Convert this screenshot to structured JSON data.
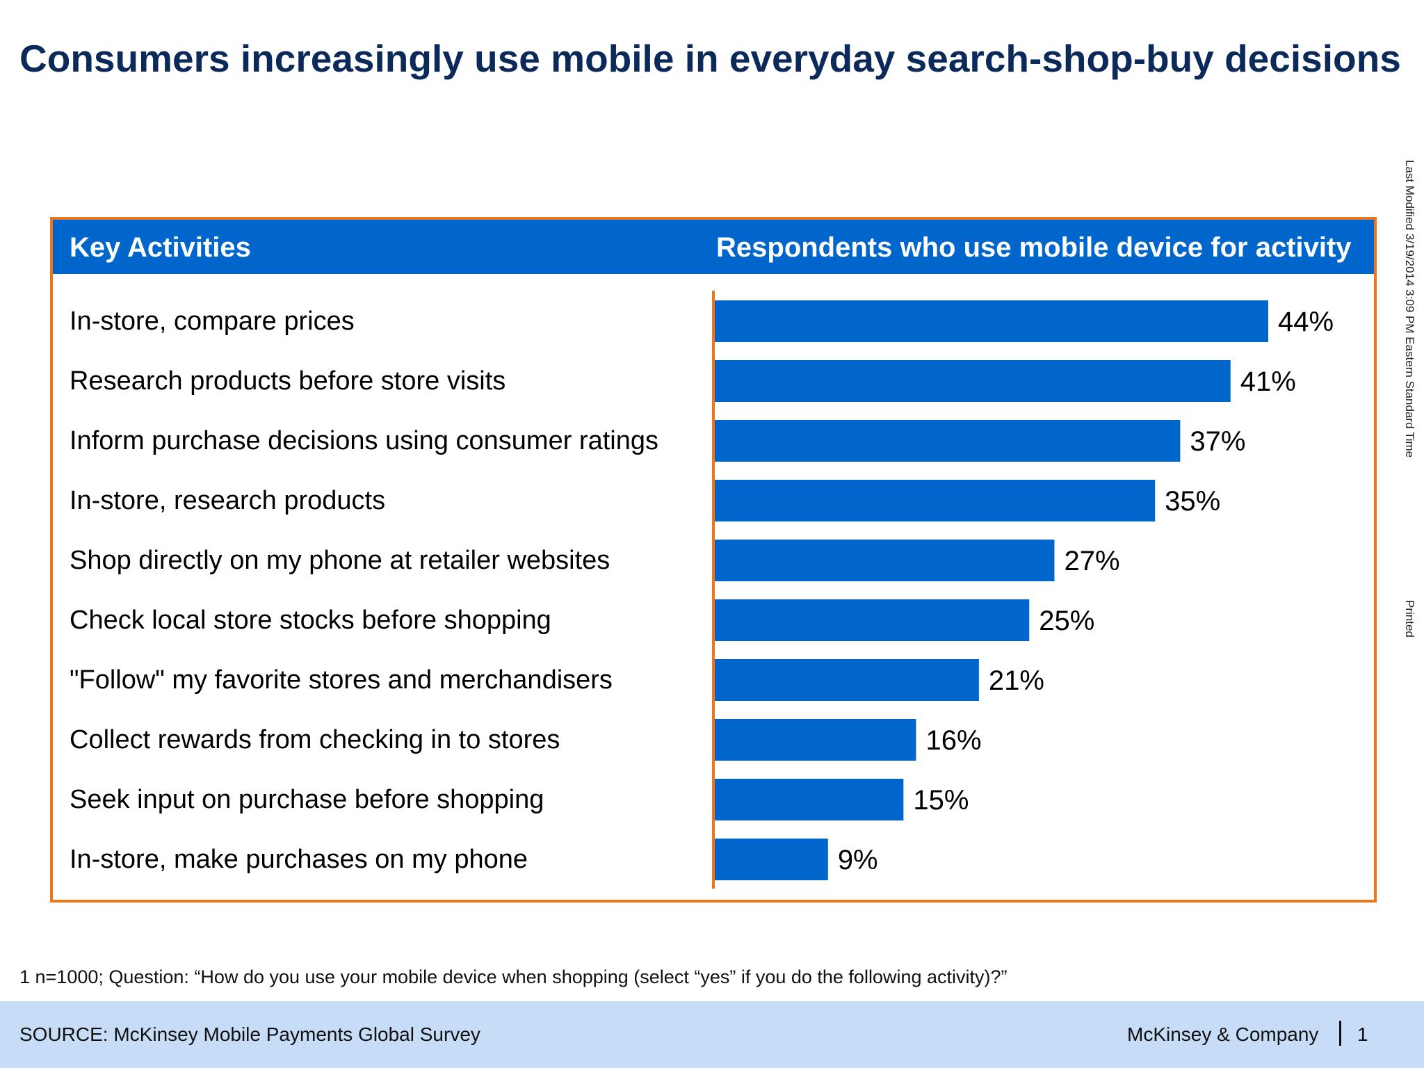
{
  "title": "Consumers increasingly use mobile in everyday search-shop-buy decisions",
  "side_notes": {
    "modified": "Last Modified 3/19/2014 3:09 PM Eastern Standard Time",
    "printed": "Printed"
  },
  "footnote": "1 n=1000; Question: “How do you use your mobile device when shopping (select “yes” if you do the following activity)?”",
  "footer": {
    "source": "SOURCE: McKinsey Mobile Payments Global Survey",
    "brand": "McKinsey & Company",
    "page": "1"
  },
  "colors": {
    "bar": "#0066cc",
    "frame": "#e87722",
    "header_bg": "#0066cc",
    "title": "#0b2a5a",
    "footer_bg": "#c7dcf6"
  },
  "chart_data": {
    "type": "bar",
    "orientation": "horizontal",
    "col_header_left": "Key Activities",
    "col_header_right": "Respondents who use mobile device for activity",
    "categories": [
      "In-store, compare prices",
      "Research products before store visits",
      "Inform purchase decisions using consumer ratings",
      "In-store, research products",
      "Shop directly on my phone at retailer websites",
      "Check local store stocks before shopping",
      "\"Follow\" my favorite stores and merchandisers",
      "Collect rewards from checking in to stores",
      "Seek input on purchase before shopping",
      "In-store, make purchases on my phone"
    ],
    "values": [
      44,
      41,
      37,
      35,
      27,
      25,
      21,
      16,
      15,
      9
    ],
    "value_labels": [
      "44%",
      "41%",
      "37%",
      "35%",
      "27%",
      "25%",
      "21%",
      "16%",
      "15%",
      "9%"
    ],
    "unit": "%",
    "xlim": [
      0,
      44
    ]
  }
}
